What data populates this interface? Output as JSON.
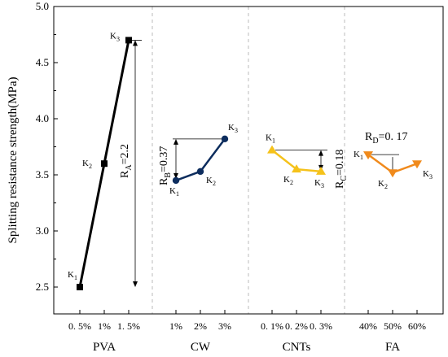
{
  "chart_data": {
    "type": "line",
    "title": "",
    "ylabel": "Splitting resistance strength(MPa)",
    "ylim": [
      2.5,
      5.0
    ],
    "yticks": [
      "2.5",
      "3.0",
      "3.5",
      "4.0",
      "4.5",
      "5.0"
    ],
    "grid": "vertical-dashed",
    "groups": [
      {
        "name": "PVA",
        "color": "#000000",
        "marker": "square",
        "x": [
          "0.5%",
          "1%",
          "1.5%"
        ],
        "x_labels": [
          "0. 5%",
          "1%",
          "1. 5%"
        ],
        "values": [
          2.5,
          3.6,
          4.7
        ],
        "point_labels": [
          "K1",
          "K2",
          "K3"
        ],
        "range_label": "RA=2.2",
        "range_text": "R",
        "range_sub": "A",
        "range_value": "=2.2"
      },
      {
        "name": "CW",
        "color": "#0d2d5e",
        "marker": "circle",
        "x": [
          "1%",
          "2%",
          "3%"
        ],
        "x_labels": [
          "1%",
          "2%",
          "3%"
        ],
        "values": [
          3.45,
          3.53,
          3.82
        ],
        "point_labels": [
          "K1",
          "K2",
          "K3"
        ],
        "range_label": "RB=0.37",
        "range_text": "R",
        "range_sub": "B",
        "range_value": "=0.37"
      },
      {
        "name": "CNTs",
        "color": "#f5c21b",
        "marker": "triangle-up",
        "x": [
          "0.1%",
          "0.2%",
          "0.3%"
        ],
        "x_labels": [
          "0. 1%",
          "0. 2%",
          "0. 3%"
        ],
        "values": [
          3.72,
          3.55,
          3.53
        ],
        "point_labels": [
          "K1",
          "K2",
          "K3"
        ],
        "range_label": "RC=0.18",
        "range_text": "R",
        "range_sub": "C",
        "range_value": "=0.18"
      },
      {
        "name": "FA",
        "color": "#f08a1c",
        "marker": "triangle-down",
        "x": [
          "40%",
          "50%",
          "60%"
        ],
        "x_labels": [
          "40%",
          "50%",
          "60%"
        ],
        "values": [
          3.68,
          3.52,
          3.6
        ],
        "point_labels": [
          "K1",
          "K2",
          "K3"
        ],
        "range_label": "RD=0.17",
        "range_text": "R",
        "range_sub": "D",
        "range_value": "=0. 17"
      }
    ]
  }
}
